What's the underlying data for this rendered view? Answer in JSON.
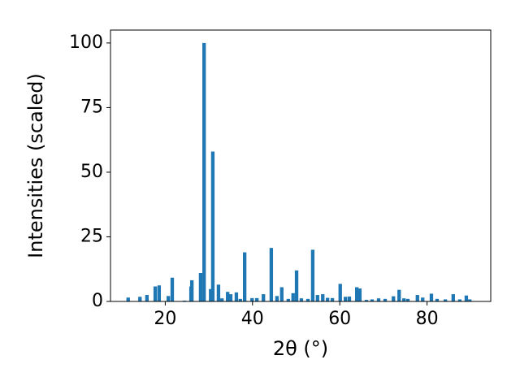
{
  "chart_data": {
    "type": "bar",
    "x_label": "2θ (°)",
    "y_label": "Intensities (scaled)",
    "x": [
      11.5,
      14.2,
      15.8,
      17.7,
      18.6,
      20.7,
      21.6,
      24.4,
      25.9,
      26.1,
      28.1,
      28.9,
      30.4,
      30.9,
      32.2,
      33.0,
      34.3,
      35.0,
      36.3,
      37.2,
      38.2,
      39.9,
      41.0,
      42.5,
      44.3,
      45.6,
      46.7,
      48.2,
      49.3,
      50.1,
      51.2,
      52.7,
      53.8,
      54.9,
      56.1,
      57.2,
      58.3,
      60.1,
      61.3,
      62.2,
      63.9,
      64.6,
      66.1,
      67.4,
      68.9,
      70.4,
      72.3,
      73.6,
      74.7,
      75.6,
      77.8,
      79.0,
      81.0,
      82.3,
      84.2,
      86.0,
      87.5,
      89.0,
      89.8
    ],
    "values": [
      1.5,
      1.8,
      2.5,
      5.8,
      6.2,
      2.1,
      9.2,
      0.3,
      5.8,
      8.2,
      11,
      100,
      4.8,
      58,
      6.5,
      1.2,
      3.7,
      2.8,
      3.5,
      1.0,
      19,
      1.3,
      1.3,
      2.8,
      20.7,
      2.1,
      5.5,
      1.0,
      3.2,
      12,
      1.2,
      1.0,
      20,
      2.5,
      2.8,
      1.4,
      1.3,
      6.8,
      1.8,
      1.9,
      5.5,
      5.0,
      0.6,
      0.8,
      1.2,
      1.0,
      2.0,
      4.5,
      1.2,
      1.0,
      2.5,
      1.5,
      3.0,
      1.0,
      0.8,
      2.8,
      0.8,
      2.3,
      0.8
    ],
    "color": "#1f77b4",
    "xlim": [
      7.45,
      94.6
    ],
    "ylim": [
      0,
      105
    ],
    "xticks": [
      20,
      40,
      60,
      80
    ],
    "yticks": [
      0,
      25,
      50,
      75,
      100
    ],
    "grid": false
  }
}
